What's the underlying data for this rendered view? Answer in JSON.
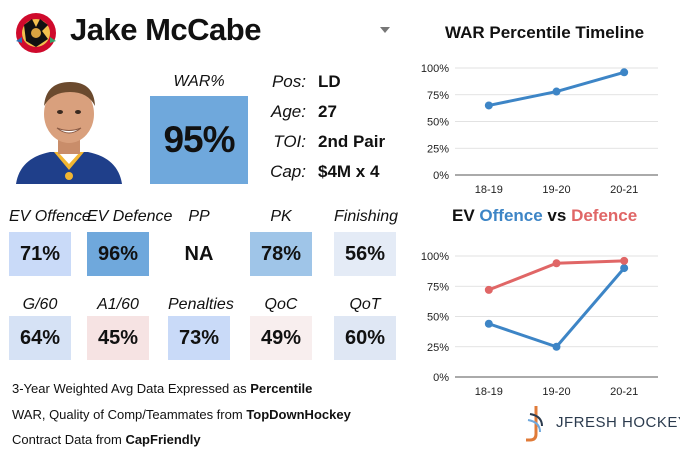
{
  "player": {
    "name": "Jake McCabe",
    "war_label": "WAR%",
    "war_value": "95%",
    "info": [
      {
        "key": "Pos:",
        "value": "LD"
      },
      {
        "key": "Age:",
        "value": "27"
      },
      {
        "key": "TOI:",
        "value": "2nd Pair"
      },
      {
        "key": "Cap:",
        "value": "$4M x 4"
      }
    ]
  },
  "stats_row1": [
    {
      "label": "EV Offence",
      "value": "71%",
      "bg": "#c9daf8"
    },
    {
      "label": "EV Defence",
      "value": "96%",
      "bg": "#6fa8dc"
    },
    {
      "label": "PP",
      "value": "NA",
      "bg": "#ffffff"
    },
    {
      "label": "PK",
      "value": "78%",
      "bg": "#9fc5e8"
    },
    {
      "label": "Finishing",
      "value": "56%",
      "bg": "#e4ebf6"
    }
  ],
  "stats_row2": [
    {
      "label": "G/60",
      "value": "64%",
      "bg": "#d6e2f5"
    },
    {
      "label": "A1/60",
      "value": "45%",
      "bg": "#f6e3e3"
    },
    {
      "label": "Penalties",
      "value": "73%",
      "bg": "#c9daf8"
    },
    {
      "label": "QoC",
      "value": "49%",
      "bg": "#f8eeee"
    },
    {
      "label": "QoT",
      "value": "60%",
      "bg": "#dfe7f4"
    }
  ],
  "footer": {
    "line1_prefix": "3-Year Weighted Avg Data Expressed as ",
    "line1_bold": "Percentile",
    "line2_prefix": "WAR, Quality of Comp/Teammates from ",
    "line2_bold": "TopDownHockey",
    "line3_prefix": "Contract Data from ",
    "line3_bold": "CapFriendly"
  },
  "brand": {
    "name": "JFRESH HOCKEY"
  },
  "icons": {
    "logo": "team-logo-icon",
    "dropdown": "chevron-down-icon",
    "brand": "jfresh-logo-icon"
  },
  "colors": {
    "war_blue": "#6fa8dc",
    "offence_blue": "#3d85c6",
    "defence_red": "#e06666"
  },
  "chart_data": [
    {
      "type": "line",
      "title": "WAR Percentile Timeline",
      "categories": [
        "18-19",
        "19-20",
        "20-21"
      ],
      "series": [
        {
          "values": [
            65,
            78,
            96
          ],
          "color": "#3d85c6"
        }
      ],
      "ylim": [
        0,
        100
      ],
      "yticks": [
        "0%",
        "25%",
        "50%",
        "75%",
        "100%"
      ],
      "grid": true
    },
    {
      "type": "line",
      "title_parts": [
        {
          "text": "EV ",
          "color": "#111111"
        },
        {
          "text": "Offence",
          "color": "#3d85c6"
        },
        {
          "text": " vs ",
          "color": "#111111"
        },
        {
          "text": "Defence",
          "color": "#e06666"
        }
      ],
      "categories": [
        "18-19",
        "19-20",
        "20-21"
      ],
      "series": [
        {
          "name": "Offence",
          "values": [
            44,
            25,
            90
          ],
          "color": "#3d85c6"
        },
        {
          "name": "Defence",
          "values": [
            72,
            94,
            96
          ],
          "color": "#e06666"
        }
      ],
      "ylim": [
        0,
        100
      ],
      "yticks": [
        "0%",
        "25%",
        "50%",
        "75%",
        "100%"
      ],
      "grid": true
    }
  ]
}
